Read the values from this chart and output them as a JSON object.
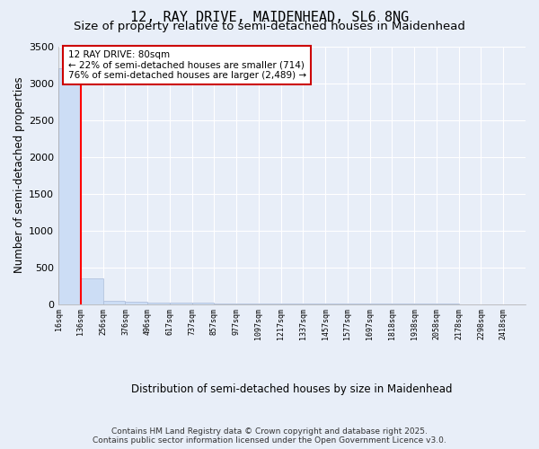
{
  "title": "12, RAY DRIVE, MAIDENHEAD, SL6 8NG",
  "subtitle": "Size of property relative to semi-detached houses in Maidenhead",
  "xlabel": "Distribution of semi-detached houses by size in Maidenhead",
  "ylabel": "Number of semi-detached properties",
  "bar_values": [
    3203,
    351,
    49,
    27,
    19,
    16,
    14,
    12,
    8,
    5,
    4,
    3,
    2,
    2,
    1,
    1,
    1,
    1,
    0,
    0,
    0
  ],
  "bin_labels": [
    "16sqm",
    "136sqm",
    "256sqm",
    "376sqm",
    "496sqm",
    "617sqm",
    "737sqm",
    "857sqm",
    "977sqm",
    "1097sqm",
    "1217sqm",
    "1337sqm",
    "1457sqm",
    "1577sqm",
    "1697sqm",
    "1818sqm",
    "1938sqm",
    "2058sqm",
    "2178sqm",
    "2298sqm",
    "2418sqm"
  ],
  "bar_color": "#ccddf5",
  "bar_edge_color": "#aabbd8",
  "red_line_x": 1.0,
  "annotation_text": "12 RAY DRIVE: 80sqm\n← 22% of semi-detached houses are smaller (714)\n76% of semi-detached houses are larger (2,489) →",
  "annotation_box_color": "#ffffff",
  "annotation_border_color": "#cc0000",
  "ylim": [
    0,
    3500
  ],
  "background_color": "#e8eef8",
  "plot_background_color": "#e8eef8",
  "grid_color": "#ffffff",
  "footer": "Contains HM Land Registry data © Crown copyright and database right 2025.\nContains public sector information licensed under the Open Government Licence v3.0.",
  "title_fontsize": 11,
  "subtitle_fontsize": 9.5,
  "ylabel_fontsize": 8.5,
  "xlabel_fontsize": 8.5,
  "footer_fontsize": 6.5
}
